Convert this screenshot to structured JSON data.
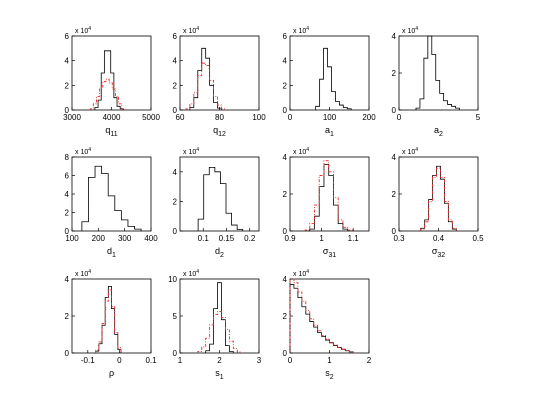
{
  "chart_data": [
    {
      "type": "histogram-step",
      "xlabel": "q",
      "xlabel_sub": "11",
      "xlim": [
        3000,
        5000
      ],
      "ylim": [
        0,
        60000
      ],
      "xticks": [
        3000,
        4000,
        5000
      ],
      "xtick_labels": [
        "3000",
        "4000",
        "5000"
      ],
      "yticks": [
        0,
        20000,
        40000,
        60000
      ],
      "ytick_labels": [
        "0",
        "2",
        "4",
        "6"
      ],
      "multiplier_base": "x 10",
      "multiplier_exp": "4",
      "series": [
        {
          "kind": "black-solid",
          "x": [
            3620,
            3700,
            3780,
            3860,
            3940,
            4020,
            4100,
            4180,
            4260
          ],
          "y": [
            2000,
            8000,
            30000,
            48000,
            48000,
            30000,
            10000,
            3000,
            1000
          ]
        },
        {
          "kind": "red-dashed",
          "x": [
            3500,
            3580,
            3660,
            3740,
            3820,
            3900,
            3980,
            4060,
            4140,
            4220,
            4300
          ],
          "y": [
            1000,
            5000,
            11000,
            18000,
            23000,
            25000,
            22000,
            17000,
            11000,
            5000,
            1000
          ]
        }
      ]
    },
    {
      "type": "histogram-step",
      "xlabel": "q",
      "xlabel_sub": "12",
      "xlim": [
        60,
        100
      ],
      "ylim": [
        0,
        60000
      ],
      "xticks": [
        60,
        80,
        100
      ],
      "xtick_labels": [
        "60",
        "80",
        "100"
      ],
      "yticks": [
        0,
        20000,
        40000,
        60000
      ],
      "ytick_labels": [
        "0",
        "2",
        "4",
        "6"
      ],
      "multiplier_base": "x 10",
      "multiplier_exp": "4",
      "series": [
        {
          "kind": "black-solid",
          "x": [
            66,
            68,
            70,
            72,
            74,
            76,
            78,
            80
          ],
          "y": [
            2000,
            10000,
            32000,
            50000,
            42000,
            20000,
            6000,
            1500
          ]
        },
        {
          "kind": "red-dashed",
          "x": [
            64,
            66,
            68,
            70,
            72,
            74,
            76,
            78,
            80,
            82
          ],
          "y": [
            1000,
            5000,
            14000,
            28000,
            38000,
            36000,
            24000,
            11000,
            4000,
            1000
          ]
        }
      ]
    },
    {
      "type": "histogram-step",
      "xlabel": "a",
      "xlabel_sub": "1",
      "xlim": [
        0,
        200
      ],
      "ylim": [
        0,
        60000
      ],
      "xticks": [
        0,
        100,
        200
      ],
      "xtick_labels": [
        "0",
        "100",
        "200"
      ],
      "yticks": [
        0,
        20000,
        40000,
        60000
      ],
      "ytick_labels": [
        "0",
        "2",
        "4",
        "6"
      ],
      "multiplier_base": "x 10",
      "multiplier_exp": "4",
      "series": [
        {
          "kind": "black-solid",
          "x": [
            70,
            80,
            90,
            100,
            110,
            120,
            130,
            140,
            150
          ],
          "y": [
            3000,
            25000,
            50000,
            35000,
            15000,
            7000,
            4000,
            2000,
            1000
          ]
        }
      ]
    },
    {
      "type": "histogram-step",
      "xlabel": "a",
      "xlabel_sub": "2",
      "xlim": [
        0,
        5
      ],
      "ylim": [
        0,
        40000
      ],
      "xticks": [
        0,
        5
      ],
      "xtick_labels": [
        "0",
        "5"
      ],
      "yticks": [
        0,
        20000,
        40000
      ],
      "ytick_labels": [
        "0",
        "2",
        "4"
      ],
      "multiplier_base": "x 10",
      "multiplier_exp": "4",
      "series": [
        {
          "kind": "black-solid",
          "x": [
            1.2,
            1.45,
            1.7,
            1.95,
            2.2,
            2.45,
            2.7,
            2.95,
            3.2,
            3.45,
            3.7
          ],
          "y": [
            1000,
            6000,
            28000,
            40000,
            30000,
            16000,
            9000,
            5000,
            3000,
            2000,
            1000
          ]
        }
      ]
    },
    {
      "type": "histogram-step",
      "xlabel": "d",
      "xlabel_sub": "1",
      "xlim": [
        100,
        400
      ],
      "ylim": [
        0,
        80000
      ],
      "xticks": [
        100,
        200,
        300,
        400
      ],
      "xtick_labels": [
        "100",
        "200",
        "300",
        "400"
      ],
      "yticks": [
        0,
        20000,
        40000,
        60000,
        80000
      ],
      "ytick_labels": [
        "0",
        "2",
        "4",
        "6",
        "8"
      ],
      "multiplier_base": "x 10",
      "multiplier_exp": "4",
      "series": [
        {
          "kind": "black-solid",
          "x": [
            150,
            175,
            200,
            225,
            250,
            275,
            300,
            325,
            350
          ],
          "y": [
            10000,
            58000,
            70000,
            62000,
            38000,
            22000,
            12000,
            5000,
            2000
          ]
        }
      ]
    },
    {
      "type": "histogram-step",
      "xlabel": "d",
      "xlabel_sub": "2",
      "xlim": [
        0.05,
        0.22
      ],
      "ylim": [
        0,
        50000
      ],
      "xticks": [
        0.1,
        0.15,
        0.2
      ],
      "xtick_labels": [
        "0.1",
        "0.15",
        "0.2"
      ],
      "yticks": [
        0,
        20000,
        40000
      ],
      "ytick_labels": [
        "0",
        "2",
        "4"
      ],
      "multiplier_base": "x 10",
      "multiplier_exp": "4",
      "series": [
        {
          "kind": "black-solid",
          "x": [
            0.095,
            0.107,
            0.119,
            0.131,
            0.143,
            0.155,
            0.167,
            0.179
          ],
          "y": [
            8000,
            38000,
            43000,
            40000,
            32000,
            12000,
            4000,
            1000
          ]
        }
      ]
    },
    {
      "type": "histogram-step",
      "xlabel": "σ",
      "xlabel_sub": "31",
      "xlim": [
        0.9,
        1.15
      ],
      "ylim": [
        0,
        40000
      ],
      "xticks": [
        0.9,
        1,
        1.1
      ],
      "xtick_labels": [
        "0.9",
        "1",
        "1.1"
      ],
      "yticks": [
        0,
        20000,
        40000
      ],
      "ytick_labels": [
        "0",
        "2",
        "4"
      ],
      "multiplier_base": "x 10",
      "multiplier_exp": "4",
      "series": [
        {
          "kind": "black-solid",
          "x": [
            0.97,
            0.985,
            1.0,
            1.015,
            1.03,
            1.045,
            1.06,
            1.075
          ],
          "y": [
            1000,
            8000,
            24000,
            36000,
            30000,
            14000,
            4000,
            1000
          ]
        },
        {
          "kind": "red-dashed",
          "x": [
            0.955,
            0.97,
            0.985,
            1.0,
            1.015,
            1.03,
            1.045,
            1.06,
            1.075,
            1.09
          ],
          "y": [
            500,
            4000,
            14000,
            30000,
            38000,
            32000,
            18000,
            6000,
            2000,
            500
          ]
        }
      ]
    },
    {
      "type": "histogram-step",
      "xlabel": "σ",
      "xlabel_sub": "32",
      "xlim": [
        0.3,
        0.5
      ],
      "ylim": [
        0,
        40000
      ],
      "xticks": [
        0.3,
        0.4,
        0.5
      ],
      "xtick_labels": [
        "0.3",
        "0.4",
        "0.5"
      ],
      "yticks": [
        0,
        20000,
        40000
      ],
      "ytick_labels": [
        "0",
        "2",
        "4"
      ],
      "multiplier_base": "x 10",
      "multiplier_exp": "4",
      "series": [
        {
          "kind": "black-solid",
          "x": [
            0.36,
            0.37,
            0.38,
            0.39,
            0.4,
            0.41,
            0.42,
            0.43,
            0.44
          ],
          "y": [
            1500,
            6000,
            17000,
            30000,
            35000,
            28000,
            15000,
            5000,
            1000
          ]
        },
        {
          "kind": "red-dashed",
          "x": [
            0.36,
            0.37,
            0.38,
            0.39,
            0.4,
            0.41,
            0.42,
            0.43,
            0.44
          ],
          "y": [
            1000,
            5000,
            16000,
            29000,
            34000,
            29000,
            16000,
            6000,
            1500
          ]
        }
      ]
    },
    {
      "type": "histogram-step",
      "xlabel": "ρ",
      "xlabel_sub": "",
      "xlim": [
        -0.15,
        0.1
      ],
      "ylim": [
        0,
        40000
      ],
      "xticks": [
        -0.1,
        0,
        0.1
      ],
      "xtick_labels": [
        "-0.1",
        "0",
        "0.1"
      ],
      "yticks": [
        0,
        20000,
        40000
      ],
      "ytick_labels": [
        "0",
        "2",
        "4"
      ],
      "multiplier_base": "x 10",
      "multiplier_exp": "4",
      "series": [
        {
          "kind": "black-solid",
          "x": [
            -0.07,
            -0.06,
            -0.05,
            -0.04,
            -0.03,
            -0.02,
            -0.01,
            0.0
          ],
          "y": [
            1000,
            5000,
            15000,
            30000,
            36000,
            24000,
            10000,
            2000
          ]
        },
        {
          "kind": "red-dashed",
          "x": [
            -0.07,
            -0.06,
            -0.05,
            -0.04,
            -0.03,
            -0.02,
            -0.01,
            0.0
          ],
          "y": [
            1500,
            6000,
            16000,
            28000,
            34000,
            25000,
            11000,
            3000
          ]
        }
      ]
    },
    {
      "type": "histogram-step",
      "xlabel": "s",
      "xlabel_sub": "1",
      "xlim": [
        1,
        3
      ],
      "ylim": [
        0,
        100000
      ],
      "xticks": [
        1,
        2,
        3
      ],
      "xtick_labels": [
        "1",
        "2",
        "3"
      ],
      "yticks": [
        0,
        50000,
        100000
      ],
      "ytick_labels": [
        "0",
        "5",
        "10"
      ],
      "multiplier_base": "x 10",
      "multiplier_exp": "4",
      "series": [
        {
          "kind": "black-solid",
          "x": [
            1.7,
            1.8,
            1.9,
            2.0,
            2.1,
            2.2,
            2.3
          ],
          "y": [
            3000,
            12000,
            60000,
            95000,
            45000,
            10000,
            2000
          ]
        },
        {
          "kind": "red-dashed",
          "x": [
            1.5,
            1.6,
            1.7,
            1.8,
            1.9,
            2.0,
            2.1,
            2.2,
            2.3,
            2.4,
            2.5
          ],
          "y": [
            2000,
            8000,
            20000,
            38000,
            52000,
            56000,
            48000,
            32000,
            16000,
            6000,
            1500
          ]
        }
      ]
    },
    {
      "type": "histogram-step",
      "xlabel": "s",
      "xlabel_sub": "2",
      "xlim": [
        0,
        2
      ],
      "ylim": [
        0,
        40000
      ],
      "xticks": [
        0,
        1,
        2
      ],
      "xtick_labels": [
        "0",
        "1",
        "2"
      ],
      "yticks": [
        0,
        20000,
        40000
      ],
      "ytick_labels": [
        "0",
        "2",
        "4"
      ],
      "multiplier_base": "x 10",
      "multiplier_exp": "4",
      "series": [
        {
          "kind": "black-solid",
          "x": [
            0.05,
            0.15,
            0.25,
            0.35,
            0.45,
            0.55,
            0.65,
            0.75,
            0.85,
            0.95,
            1.05,
            1.15,
            1.25,
            1.35,
            1.45,
            1.55
          ],
          "y": [
            37000,
            35000,
            30000,
            25000,
            21000,
            17000,
            14000,
            11000,
            9000,
            7000,
            5500,
            4000,
            3000,
            2000,
            1200,
            600
          ]
        },
        {
          "kind": "red-dashed",
          "x": [
            0.05,
            0.15,
            0.25,
            0.35,
            0.45,
            0.55,
            0.65,
            0.75,
            0.85,
            0.95,
            1.05,
            1.15,
            1.25,
            1.35,
            1.45,
            1.55
          ],
          "y": [
            40000,
            38000,
            33000,
            28000,
            23000,
            18500,
            15000,
            12000,
            9500,
            7500,
            5800,
            4300,
            3100,
            2100,
            1300,
            700
          ]
        }
      ]
    }
  ]
}
